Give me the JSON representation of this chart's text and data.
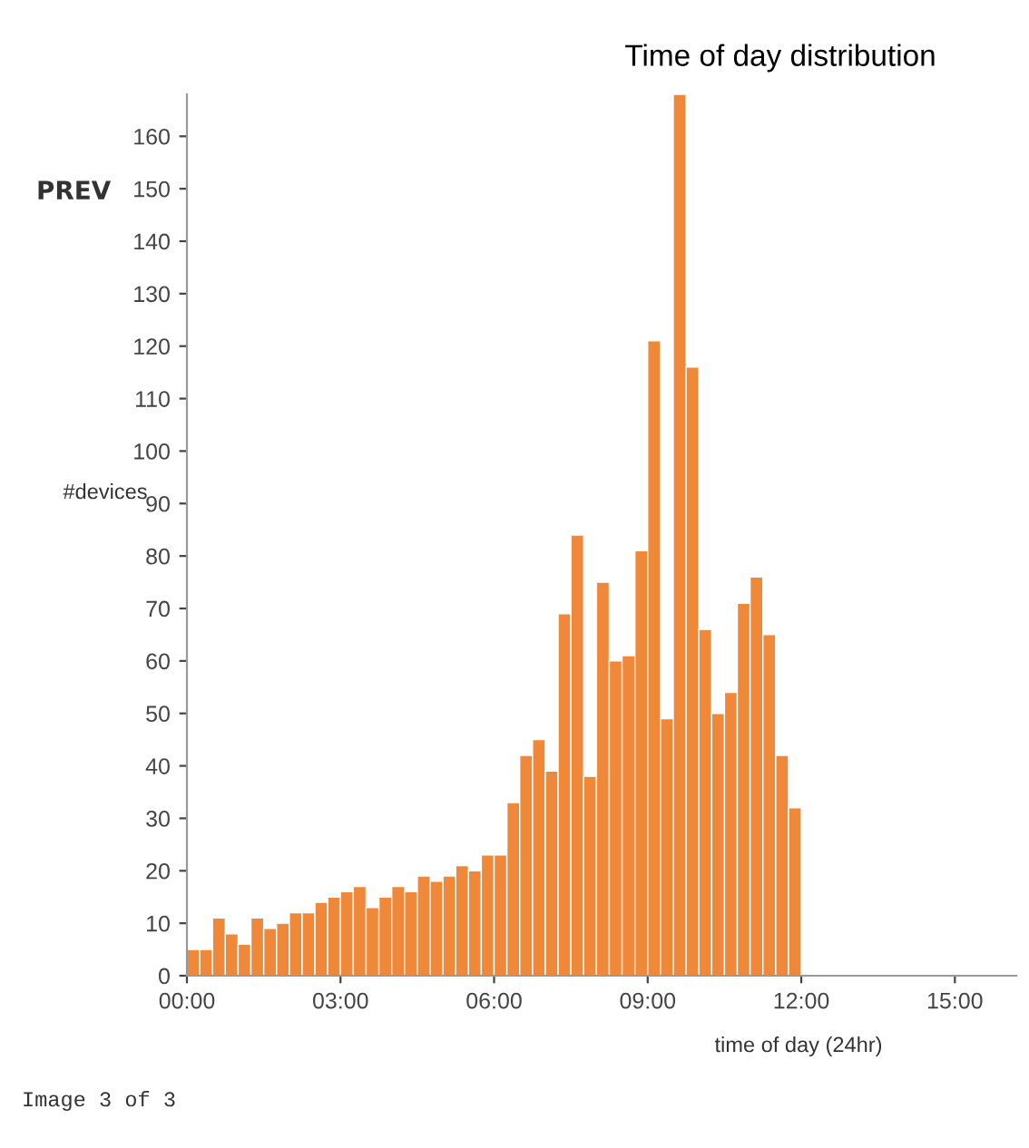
{
  "chart_data": {
    "type": "histogram",
    "title": "Time of day distribution",
    "xlabel": "time of day (24hr)",
    "ylabel": "#devices",
    "annotations": [
      "PREV",
      "Image 3 of 3"
    ],
    "bins": [
      0,
      0.25,
      0.5,
      0.75,
      1,
      1.25,
      1.5,
      1.75,
      2,
      2.25,
      2.5,
      2.75,
      3,
      3.25,
      3.5,
      3.75,
      4,
      4.25,
      4.5,
      4.75,
      5,
      5.25,
      5.5,
      5.75,
      6,
      6.25,
      6.5,
      6.75,
      7,
      7.25,
      7.5,
      7.75,
      8,
      8.25,
      8.5,
      8.75,
      9,
      9.25,
      9.5,
      9.75,
      10,
      10.25,
      10.5,
      10.75,
      11,
      11.25,
      11.5,
      11.75,
      12
    ],
    "values": [
      5,
      5,
      11,
      8,
      6,
      11,
      9,
      10,
      12,
      12,
      14,
      15,
      16,
      17,
      13,
      15,
      17,
      16,
      19,
      18,
      19,
      21,
      20,
      23,
      23,
      33,
      42,
      45,
      39,
      69,
      84,
      38,
      75,
      60,
      61,
      81,
      121,
      49,
      168,
      116,
      66,
      50,
      54,
      71,
      76,
      65,
      42,
      32
    ],
    "color": "#f0883a",
    "xlim": [
      0,
      16.2
    ],
    "ylim": [
      0,
      168
    ],
    "xticks": [
      {
        "value": 0,
        "label": "00:00"
      },
      {
        "value": 3,
        "label": "03:00"
      },
      {
        "value": 6,
        "label": "06:00"
      },
      {
        "value": 9,
        "label": "09:00"
      },
      {
        "value": 12,
        "label": "12:00"
      },
      {
        "value": 15,
        "label": "15:00"
      }
    ],
    "yticks": [
      0,
      10,
      20,
      30,
      40,
      50,
      60,
      70,
      80,
      90,
      100,
      110,
      120,
      130,
      140,
      150,
      160
    ],
    "grid": false,
    "legend": false
  }
}
